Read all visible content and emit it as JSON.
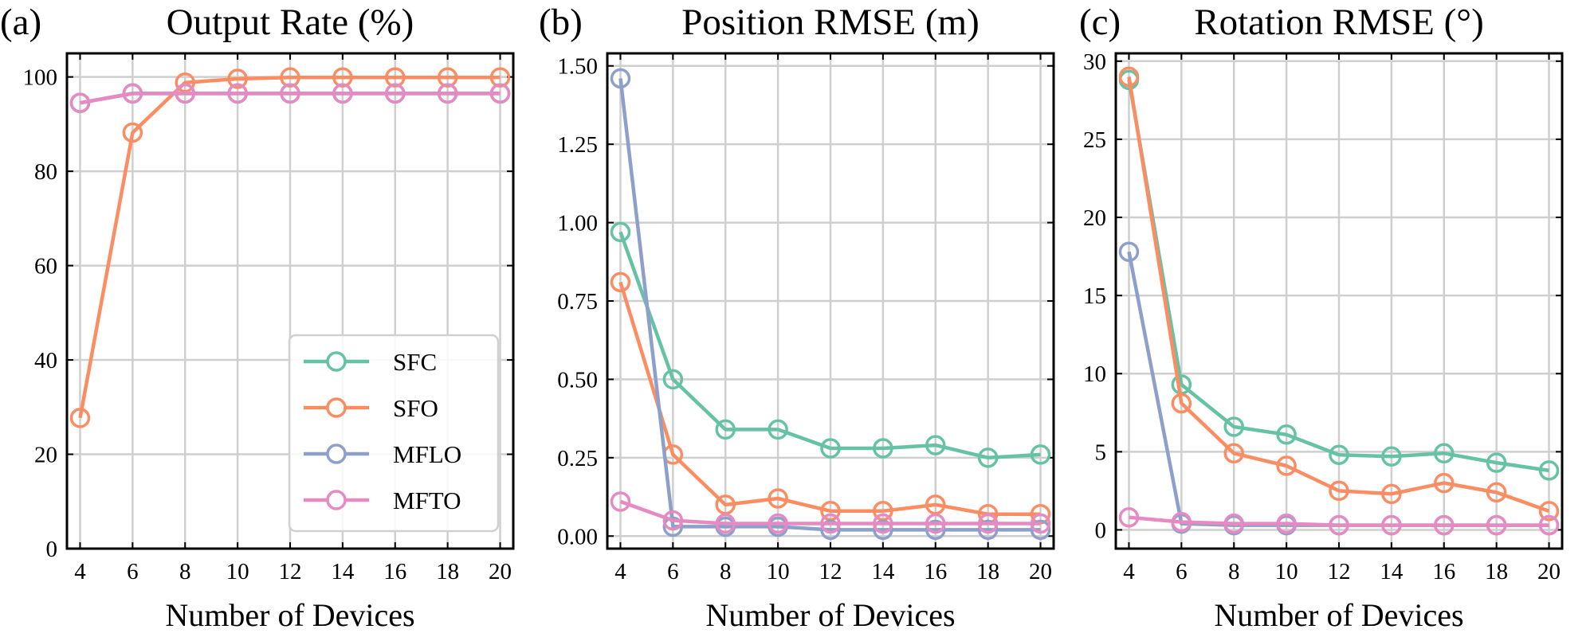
{
  "colors": {
    "SFC": "#66c2a5",
    "SFO": "#fc8d62",
    "MFLO": "#8da0cb",
    "MFTO": "#e78ac3"
  },
  "chart_data": [
    {
      "type": "line",
      "panel_label": "(a)",
      "title": "Output Rate (%)",
      "xlabel": "Number of Devices",
      "ylabel": "",
      "x": [
        4,
        6,
        8,
        10,
        12,
        14,
        16,
        18,
        20
      ],
      "xlim": [
        3.5,
        20.5
      ],
      "ylim": [
        0,
        105
      ],
      "yticks": [
        0,
        20,
        40,
        60,
        80,
        100
      ],
      "ytick_labels": [
        "0",
        "20",
        "40",
        "60",
        "80",
        "100"
      ],
      "grid": true,
      "legend": "lower-right",
      "series": [
        {
          "name": "SFC",
          "values": [
            94.5,
            96.5,
            96.5,
            96.5,
            96.5,
            96.5,
            96.5,
            96.5,
            96.5
          ]
        },
        {
          "name": "SFO",
          "values": [
            27.7,
            88.2,
            98.8,
            99.6,
            99.9,
            99.9,
            99.9,
            99.9,
            99.9
          ]
        },
        {
          "name": "MFLO",
          "values": [
            94.5,
            96.5,
            96.5,
            96.5,
            96.5,
            96.5,
            96.5,
            96.5,
            96.5
          ]
        },
        {
          "name": "MFTO",
          "values": [
            94.5,
            96.5,
            96.5,
            96.5,
            96.5,
            96.5,
            96.5,
            96.5,
            96.5
          ]
        }
      ]
    },
    {
      "type": "line",
      "panel_label": "(b)",
      "title": "Position RMSE (m)",
      "xlabel": "Number of Devices",
      "ylabel": "",
      "x": [
        4,
        6,
        8,
        10,
        12,
        14,
        16,
        18,
        20
      ],
      "xlim": [
        3.5,
        20.5
      ],
      "ylim": [
        -0.04,
        1.54
      ],
      "yticks": [
        0,
        0.25,
        0.5,
        0.75,
        1.0,
        1.25,
        1.5
      ],
      "ytick_labels": [
        "0.00",
        "0.25",
        "0.50",
        "0.75",
        "1.00",
        "1.25",
        "1.50"
      ],
      "grid": true,
      "legend": "none",
      "series": [
        {
          "name": "SFC",
          "values": [
            0.97,
            0.5,
            0.34,
            0.34,
            0.28,
            0.28,
            0.29,
            0.25,
            0.26
          ]
        },
        {
          "name": "SFO",
          "values": [
            0.81,
            0.26,
            0.1,
            0.12,
            0.08,
            0.08,
            0.1,
            0.07,
            0.07
          ]
        },
        {
          "name": "MFLO",
          "values": [
            1.46,
            0.03,
            0.03,
            0.03,
            0.02,
            0.02,
            0.02,
            0.02,
            0.02
          ]
        },
        {
          "name": "MFTO",
          "values": [
            0.11,
            0.05,
            0.04,
            0.04,
            0.04,
            0.04,
            0.04,
            0.04,
            0.04
          ]
        }
      ]
    },
    {
      "type": "line",
      "panel_label": "(c)",
      "title": "Rotation RMSE (°)",
      "xlabel": "Number of Devices",
      "ylabel": "",
      "x": [
        4,
        6,
        8,
        10,
        12,
        14,
        16,
        18,
        20
      ],
      "xlim": [
        3.5,
        20.5
      ],
      "ylim": [
        -1.2,
        30.5
      ],
      "yticks": [
        0,
        5,
        10,
        15,
        20,
        25,
        30
      ],
      "ytick_labels": [
        "0",
        "5",
        "10",
        "15",
        "20",
        "25",
        "30"
      ],
      "grid": true,
      "legend": "none",
      "series": [
        {
          "name": "SFC",
          "values": [
            28.8,
            9.3,
            6.6,
            6.1,
            4.8,
            4.7,
            4.9,
            4.3,
            3.8
          ]
        },
        {
          "name": "SFO",
          "values": [
            29.0,
            8.1,
            4.9,
            4.1,
            2.5,
            2.3,
            3.0,
            2.4,
            1.2
          ]
        },
        {
          "name": "MFLO",
          "values": [
            17.8,
            0.4,
            0.3,
            0.3,
            0.3,
            0.3,
            0.3,
            0.3,
            0.3
          ]
        },
        {
          "name": "MFTO",
          "values": [
            0.8,
            0.5,
            0.4,
            0.4,
            0.3,
            0.3,
            0.3,
            0.3,
            0.3
          ]
        }
      ]
    }
  ]
}
